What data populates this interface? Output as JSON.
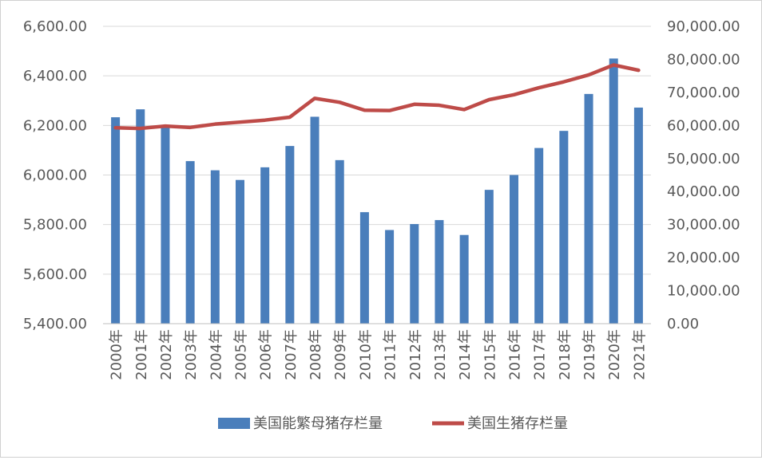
{
  "chart_data": {
    "type": "bar",
    "categories": [
      "2000年",
      "2001年",
      "2002年",
      "2003年",
      "2004年",
      "2005年",
      "2006年",
      "2007年",
      "2008年",
      "2009年",
      "2010年",
      "2011年",
      "2012年",
      "2013年",
      "2014年",
      "2015年",
      "2016年",
      "2017年",
      "2018年",
      "2019年",
      "2020年",
      "2021年"
    ],
    "series": [
      {
        "name": "美国能繁母猪存栏量",
        "type": "bar",
        "axis": "left",
        "color": "#4a7ebb",
        "values": [
          6233,
          6265,
          6197,
          6056,
          6019,
          5980,
          6031,
          6117,
          6235,
          6060,
          5850,
          5778,
          5802,
          5818,
          5758,
          5940,
          6000,
          6109,
          6178,
          6327,
          6470,
          6272
        ]
      },
      {
        "name": "美国生猪存栏量",
        "type": "line",
        "axis": "right",
        "color": "#be4b48",
        "values": [
          59300,
          59100,
          59800,
          59400,
          60400,
          61000,
          61600,
          62500,
          68200,
          67000,
          64600,
          64500,
          66400,
          66100,
          64800,
          67800,
          69300,
          71400,
          73200,
          75300,
          78300,
          76700
        ]
      }
    ],
    "y_left": {
      "min": 5400,
      "max": 6600,
      "step": 200,
      "ticks": [
        "5,400.00",
        "5,600.00",
        "5,800.00",
        "6,000.00",
        "6,200.00",
        "6,400.00",
        "6,600.00"
      ]
    },
    "y_right": {
      "min": 0,
      "max": 90000,
      "step": 10000,
      "ticks": [
        "0.00",
        "10,000.00",
        "20,000.00",
        "30,000.00",
        "40,000.00",
        "50,000.00",
        "60,000.00",
        "70,000.00",
        "80,000.00",
        "90,000.00"
      ]
    },
    "grid": true,
    "legend_position": "bottom"
  }
}
